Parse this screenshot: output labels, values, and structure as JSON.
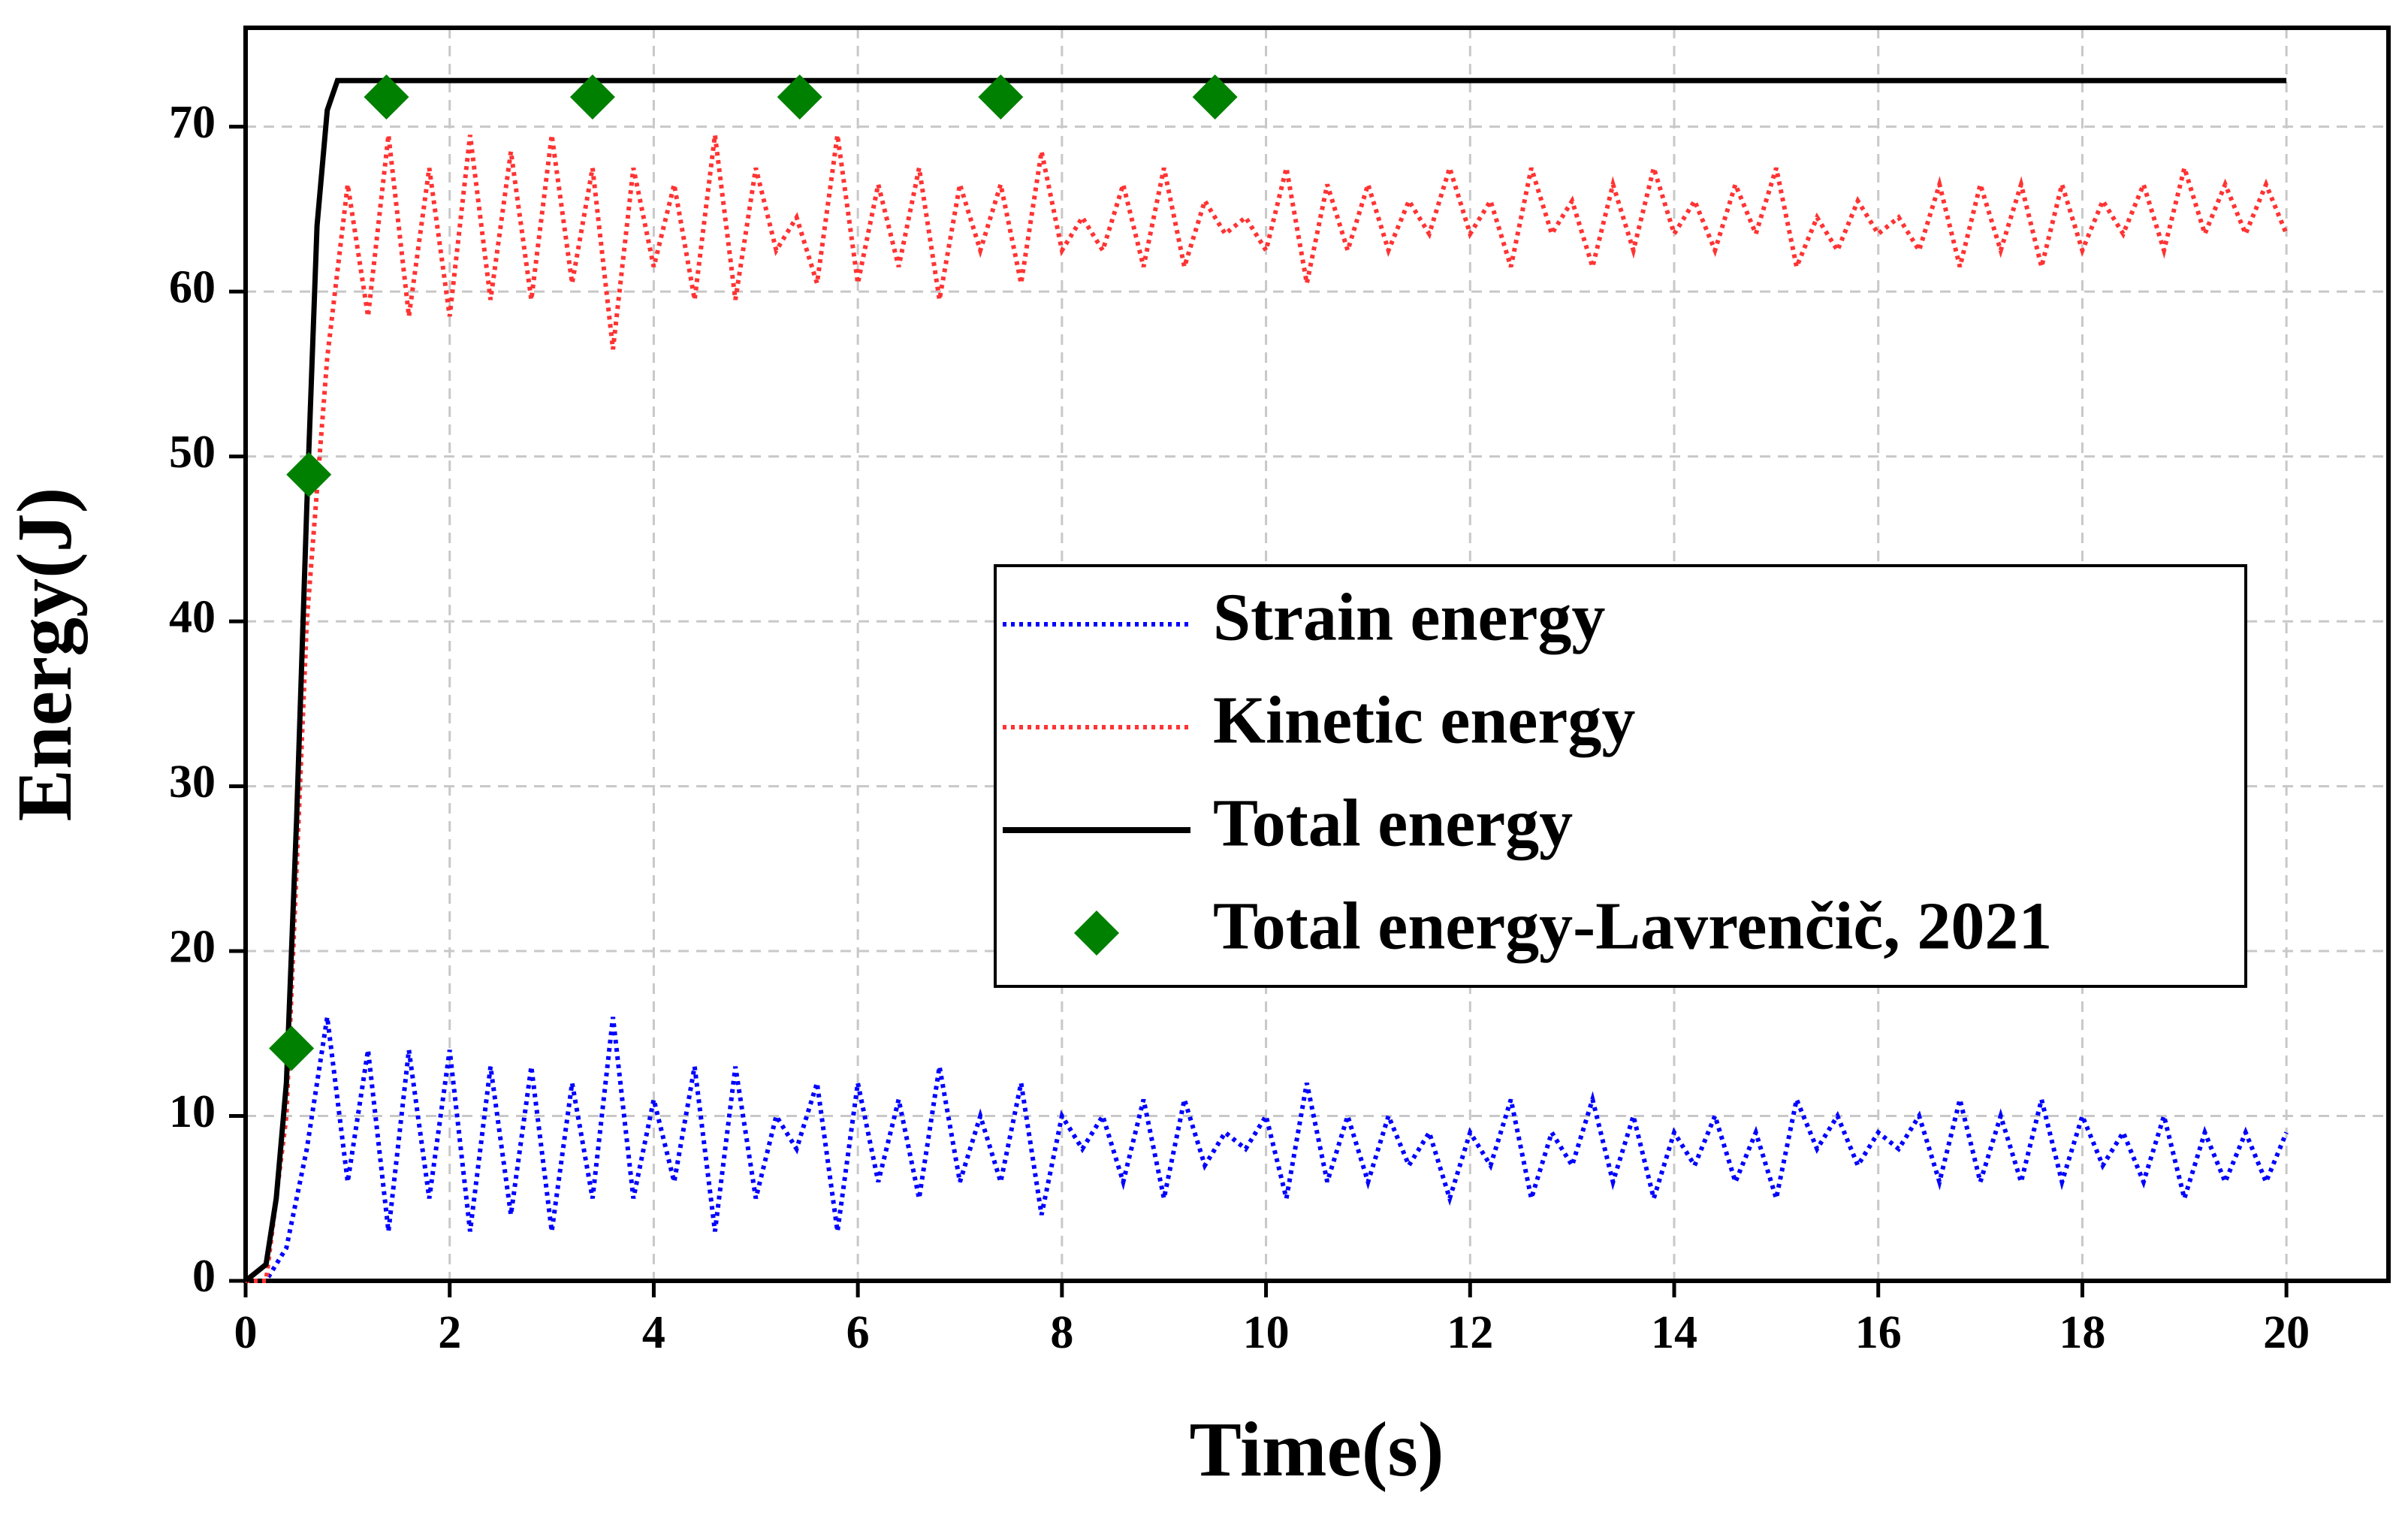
{
  "chart_data": {
    "type": "line",
    "xlabel": "Time(s)",
    "ylabel": "Energy(J)",
    "xlim": [
      0,
      21
    ],
    "ylim": [
      0,
      76
    ],
    "xticks": [
      0,
      2,
      4,
      6,
      8,
      10,
      12,
      14,
      16,
      18,
      20
    ],
    "yticks": [
      0,
      10,
      20,
      30,
      40,
      50,
      60,
      70
    ],
    "grid": true,
    "legend": "center-right",
    "series": [
      {
        "name": "Strain energy",
        "color": "#0000ff",
        "style": "dotted",
        "x": [
          0,
          0.2,
          0.4,
          0.6,
          0.8,
          1,
          1.2,
          1.4,
          1.6,
          1.8,
          2,
          2.2,
          2.4,
          2.6,
          2.8,
          3,
          3.2,
          3.4,
          3.6,
          3.8,
          4,
          4.2,
          4.4,
          4.6,
          4.8,
          5,
          5.2,
          5.4,
          5.6,
          5.8,
          6,
          6.2,
          6.4,
          6.6,
          6.8,
          7,
          7.2,
          7.4,
          7.6,
          7.8,
          8,
          8.2,
          8.4,
          8.6,
          8.8,
          9,
          9.2,
          9.4,
          9.6,
          9.8,
          10,
          10.2,
          10.4,
          10.6,
          10.8,
          11,
          11.2,
          11.4,
          11.6,
          11.8,
          12,
          12.2,
          12.4,
          12.6,
          12.8,
          13,
          13.2,
          13.4,
          13.6,
          13.8,
          14,
          14.2,
          14.4,
          14.6,
          14.8,
          15,
          15.2,
          15.4,
          15.6,
          15.8,
          16,
          16.2,
          16.4,
          16.6,
          16.8,
          17,
          17.2,
          17.4,
          17.6,
          17.8,
          18,
          18.2,
          18.4,
          18.6,
          18.8,
          19,
          19.2,
          19.4,
          19.6,
          19.8,
          20
        ],
        "values": [
          0,
          0,
          2,
          8,
          16,
          6,
          14,
          3,
          14,
          5,
          14,
          3,
          13,
          4,
          13,
          3,
          12,
          5,
          16,
          5,
          11,
          6,
          13,
          3,
          13,
          5,
          10,
          8,
          12,
          3,
          12,
          6,
          11,
          5,
          13,
          6,
          10,
          6,
          12,
          4,
          10,
          8,
          10,
          6,
          11,
          5,
          11,
          7,
          9,
          8,
          10,
          5,
          12,
          6,
          10,
          6,
          10,
          7,
          9,
          5,
          9,
          7,
          11,
          5,
          9,
          7,
          11,
          6,
          10,
          5,
          9,
          7,
          10,
          6,
          9,
          5,
          11,
          8,
          10,
          7,
          9,
          8,
          10,
          6,
          11,
          6,
          10,
          6,
          11,
          6,
          10,
          7,
          9,
          6,
          10,
          5,
          9,
          6,
          9,
          6,
          9
        ]
      },
      {
        "name": "Kinetic energy",
        "color": "#ff3333",
        "style": "dotted",
        "x": [
          0,
          0.2,
          0.4,
          0.6,
          0.8,
          1,
          1.2,
          1.4,
          1.6,
          1.8,
          2,
          2.2,
          2.4,
          2.6,
          2.8,
          3,
          3.2,
          3.4,
          3.6,
          3.8,
          4,
          4.2,
          4.4,
          4.6,
          4.8,
          5,
          5.2,
          5.4,
          5.6,
          5.8,
          6,
          6.2,
          6.4,
          6.6,
          6.8,
          7,
          7.2,
          7.4,
          7.6,
          7.8,
          8,
          8.2,
          8.4,
          8.6,
          8.8,
          9,
          9.2,
          9.4,
          9.6,
          9.8,
          10,
          10.2,
          10.4,
          10.6,
          10.8,
          11,
          11.2,
          11.4,
          11.6,
          11.8,
          12,
          12.2,
          12.4,
          12.6,
          12.8,
          13,
          13.2,
          13.4,
          13.6,
          13.8,
          14,
          14.2,
          14.4,
          14.6,
          14.8,
          15,
          15.2,
          15.4,
          15.6,
          15.8,
          16,
          16.2,
          16.4,
          16.6,
          16.8,
          17,
          17.2,
          17.4,
          17.6,
          17.8,
          18,
          18.2,
          18.4,
          18.6,
          18.8,
          19,
          19.2,
          19.4,
          19.6,
          19.8,
          20
        ],
        "values": [
          0,
          0,
          10,
          40,
          56,
          66.5,
          58.5,
          69.5,
          58.5,
          67.5,
          58.5,
          69.5,
          59.5,
          68.5,
          59.5,
          69.5,
          60.5,
          67.5,
          56.5,
          67.5,
          61.5,
          66.5,
          59.5,
          69.5,
          59.5,
          67.5,
          62.5,
          64.5,
          60.5,
          69.5,
          60.5,
          66.5,
          61.5,
          67.5,
          59.5,
          66.5,
          62.5,
          66.5,
          60.5,
          68.5,
          62.5,
          64.5,
          62.5,
          66.5,
          61.5,
          67.5,
          61.5,
          65.5,
          63.5,
          64.5,
          62.5,
          67.5,
          60.5,
          66.5,
          62.5,
          66.5,
          62.5,
          65.5,
          63.5,
          67.5,
          63.5,
          65.5,
          61.5,
          67.5,
          63.5,
          65.5,
          61.5,
          66.5,
          62.5,
          67.5,
          63.5,
          65.5,
          62.5,
          66.5,
          63.5,
          67.5,
          61.5,
          64.5,
          62.5,
          65.5,
          63.5,
          64.5,
          62.5,
          66.5,
          61.5,
          66.5,
          62.5,
          66.5,
          61.5,
          66.5,
          62.5,
          65.5,
          63.5,
          66.5,
          62.5,
          67.5,
          63.5,
          66.5,
          63.5,
          66.5,
          63.5
        ]
      },
      {
        "name": "Total energy",
        "color": "#000000",
        "style": "solid",
        "x": [
          0,
          0.2,
          0.3,
          0.4,
          0.5,
          0.6,
          0.7,
          0.8,
          0.9,
          20
        ],
        "values": [
          0,
          1,
          5,
          12,
          28,
          47,
          64,
          71,
          72.8,
          72.8
        ]
      },
      {
        "name": "Total energy-Lavrenčič, 2021",
        "color": "#008000",
        "style": "marker",
        "x": [
          0.45,
          0.62,
          1.38,
          3.4,
          5.43,
          7.4,
          9.5
        ],
        "values": [
          14.1,
          48.9,
          71.8,
          71.8,
          71.8,
          71.8,
          71.8
        ]
      }
    ]
  }
}
